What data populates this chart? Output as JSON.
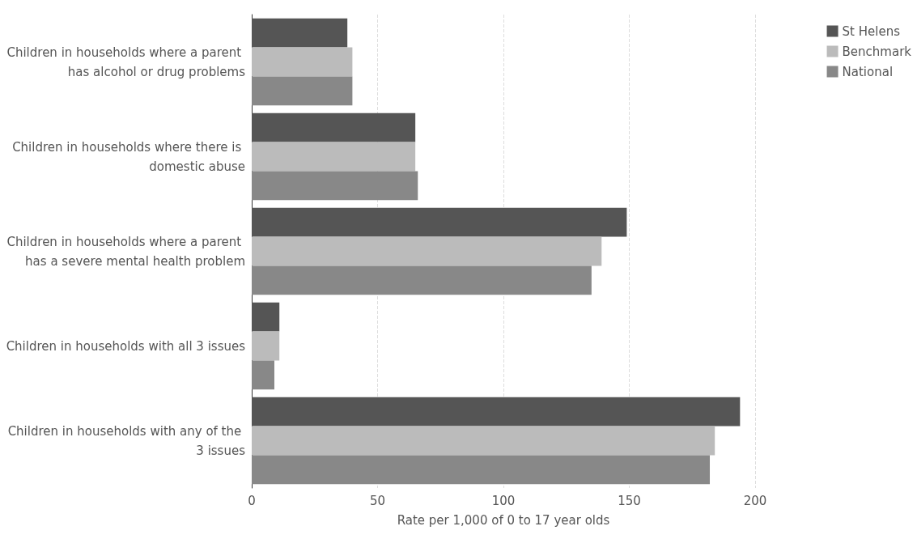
{
  "chart_data": {
    "type": "bar",
    "orientation": "horizontal",
    "xlabel": "Rate per 1,000 of 0 to 17 year olds",
    "categories": [
      "Children in households where a parent has alcohol or drug problems",
      "Children in households where there is domestic abuse",
      "Children in households where a parent has a severe mental health problem",
      "Children in households with all 3 issues",
      "Children in households with any of the 3 issues"
    ],
    "series": [
      {
        "name": "St Helens",
        "color": "#555555",
        "values": [
          38,
          65,
          149,
          11,
          194
        ]
      },
      {
        "name": "Benchmark",
        "color": "#bbbbbb",
        "values": [
          40,
          65,
          139,
          11,
          184
        ]
      },
      {
        "name": "National",
        "color": "#888888",
        "values": [
          40,
          66,
          135,
          9,
          182
        ]
      }
    ],
    "xlim": [
      0,
      200
    ],
    "xticks": [
      0,
      50,
      100,
      150,
      200
    ],
    "grid": "x",
    "legend": "top right"
  }
}
